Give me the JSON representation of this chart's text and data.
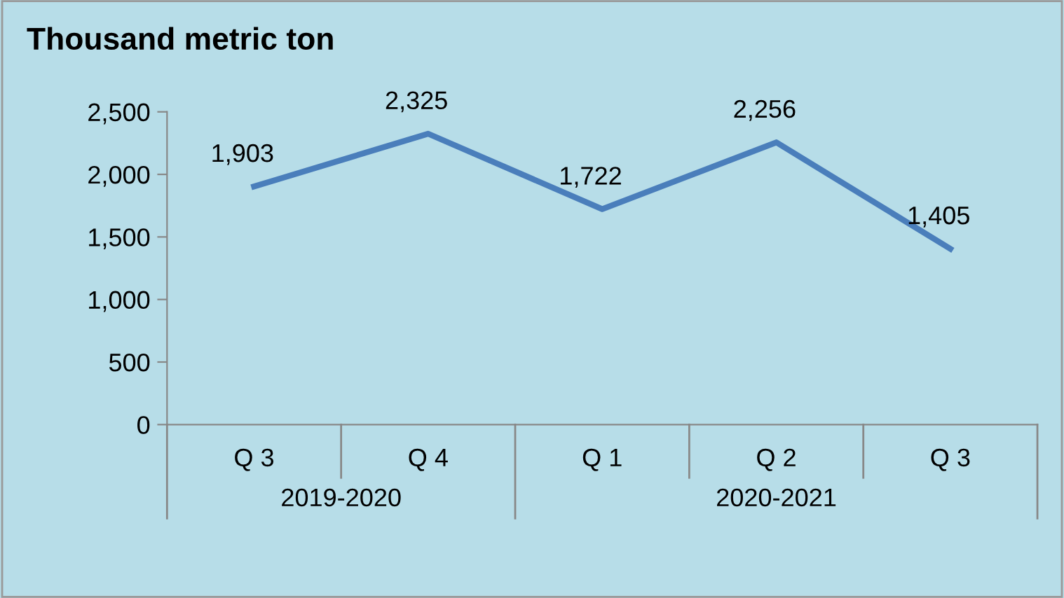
{
  "chart_data": {
    "type": "line",
    "title": "Thousand metric ton",
    "categories": [
      "Q 3",
      "Q 4",
      "Q 1",
      "Q 2",
      "Q 3"
    ],
    "series": [
      {
        "color": "#4a7ebb",
        "values": [
          1903,
          2325,
          1722,
          2256,
          1405
        ]
      }
    ],
    "value_labels": [
      "1,903",
      "2,325",
      "1,722",
      "2,256",
      "1,405"
    ],
    "ylim": [
      0,
      2500
    ],
    "yticks": [
      0,
      500,
      {
        "value": 1000,
        "label": "1,000"
      },
      {
        "value": 1500,
        "label": "1,500"
      },
      {
        "value": 2000,
        "label": "2,000"
      },
      {
        "value": 2500,
        "label": "2,500"
      }
    ],
    "annotations": [
      "2019-2020",
      "2020-2021"
    ],
    "grid": false,
    "legend": false,
    "marker": "none",
    "line_style": "solid"
  }
}
